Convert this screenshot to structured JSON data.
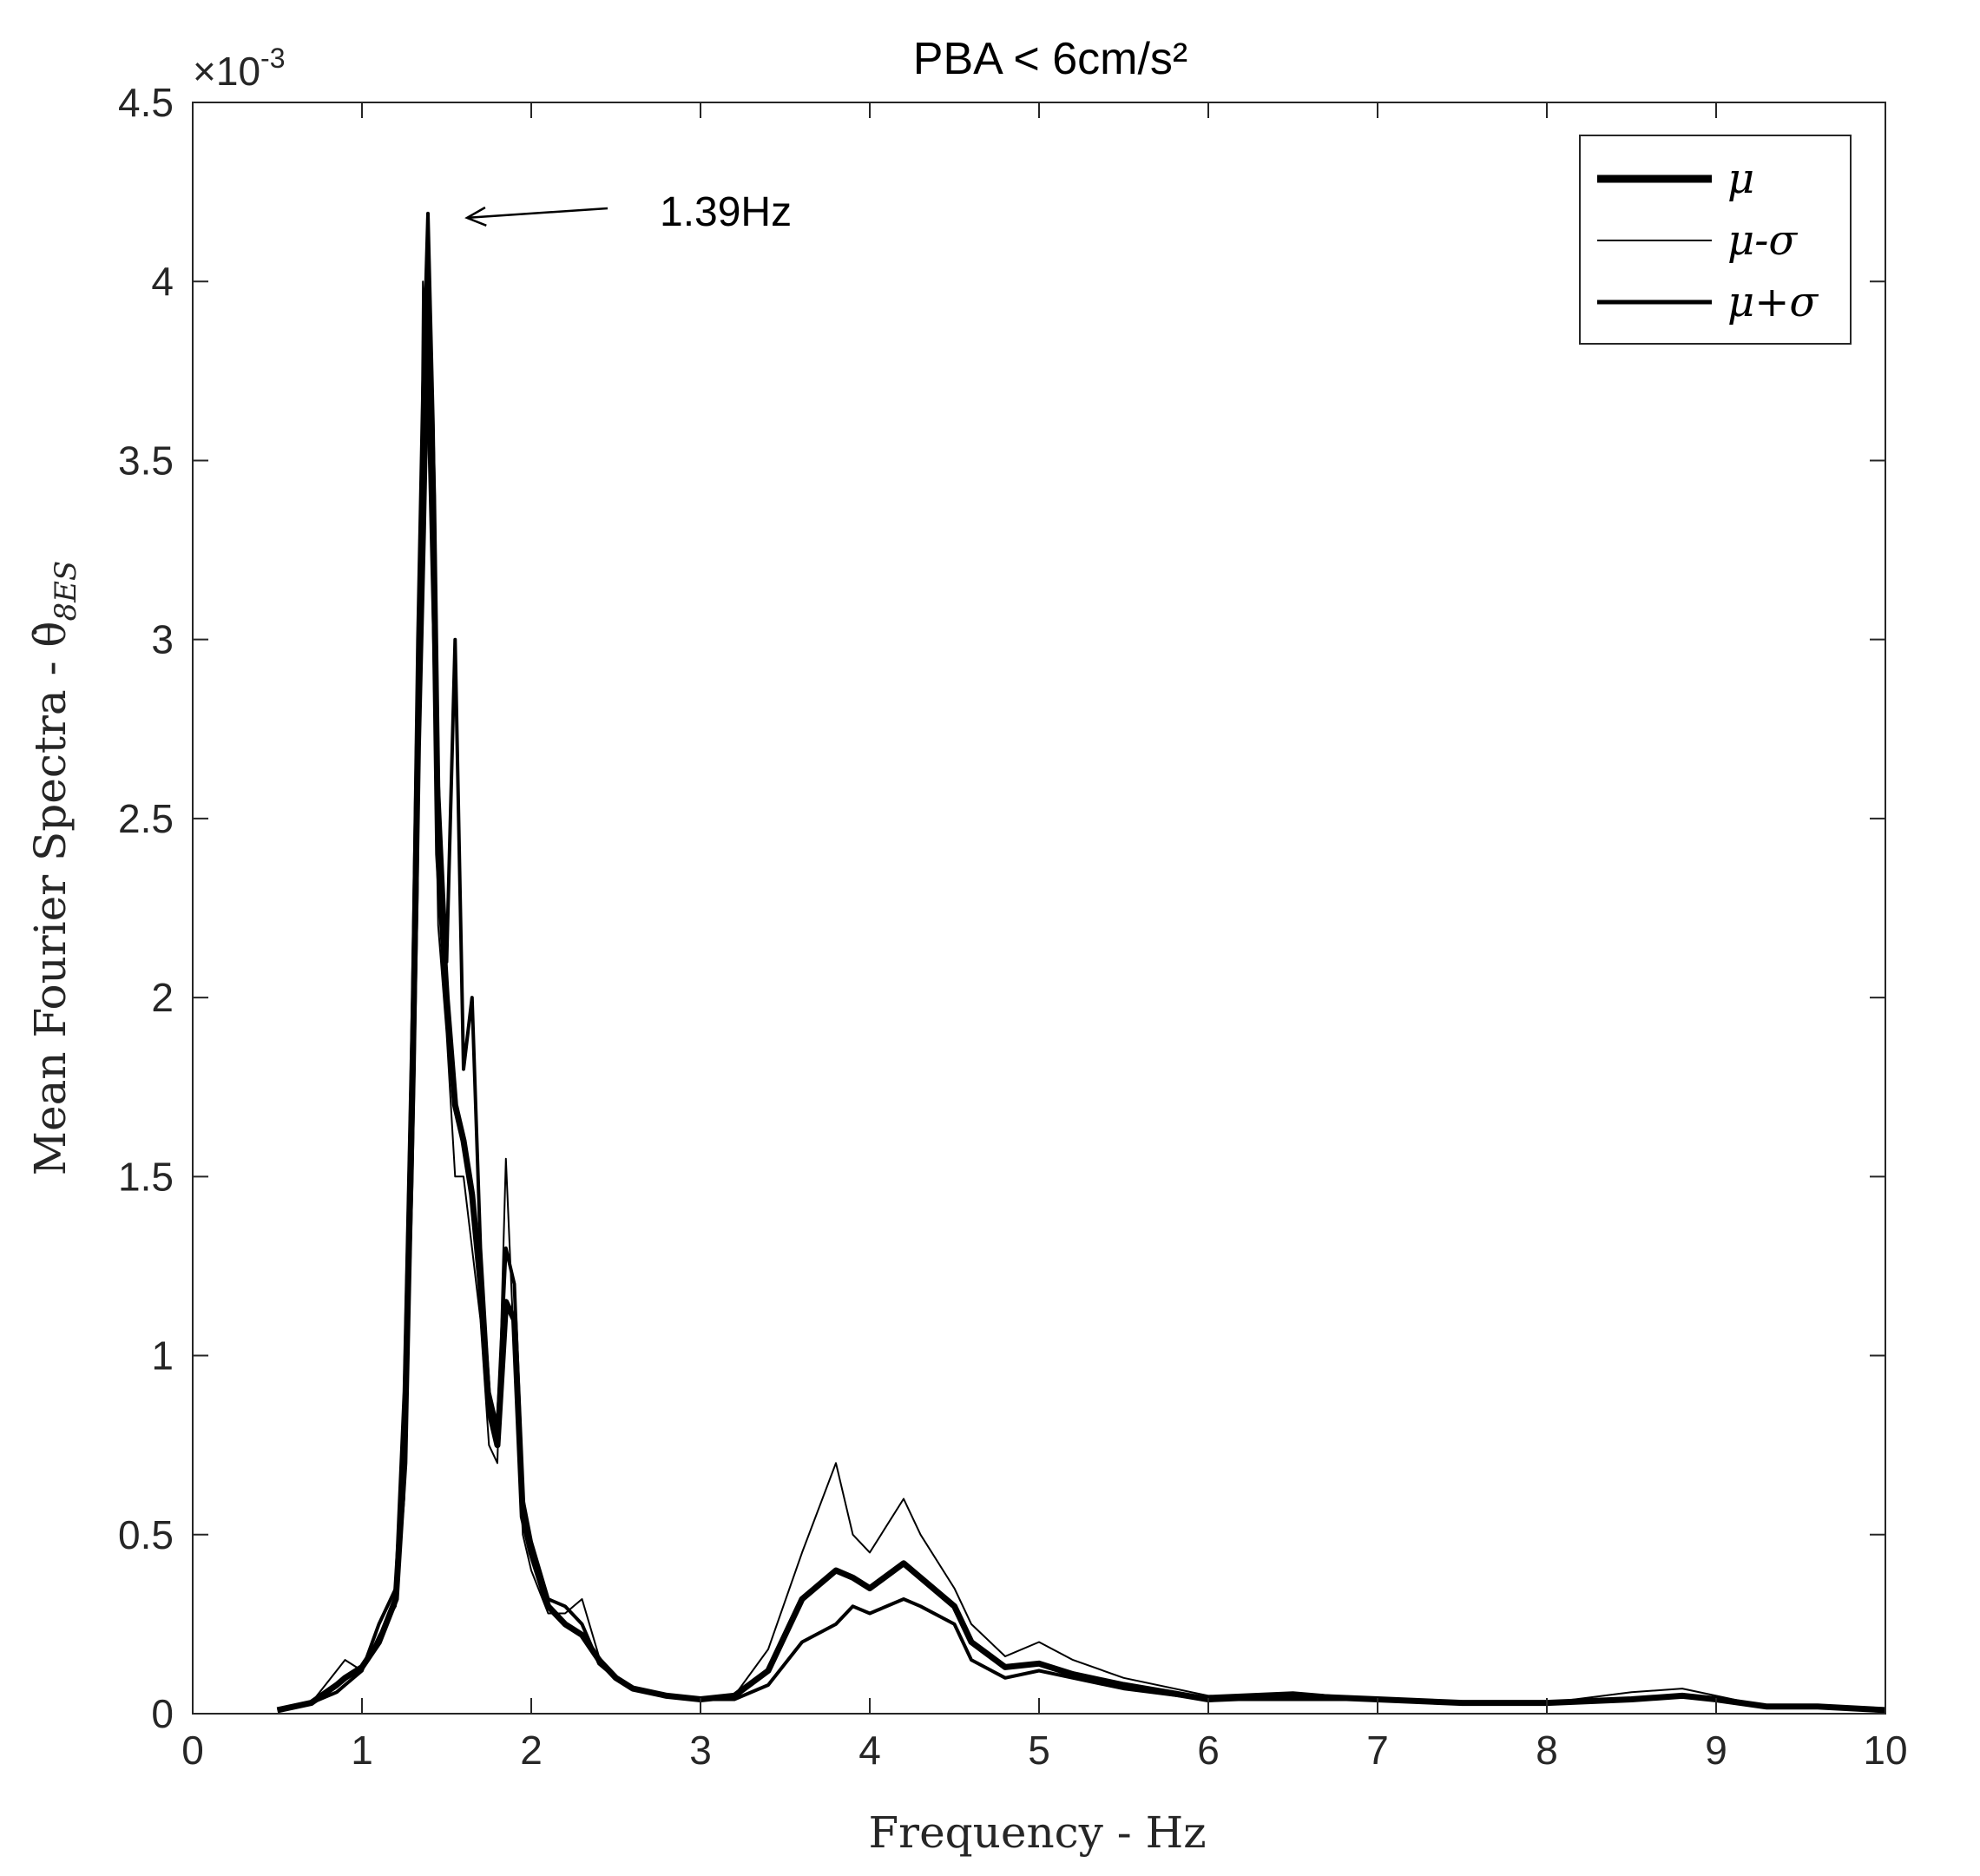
{
  "chart_data": {
    "type": "line",
    "title": "PBA < 6cm/s²",
    "xlabel": "Frequency - Hz",
    "ylabel": "Mean Fourier Spectra - θ̇",
    "ylabel_subscript": "8ES",
    "y_multiplier_label": "×10",
    "y_multiplier_exponent": "-3",
    "xlim": [
      0,
      10
    ],
    "ylim": [
      0,
      4.5
    ],
    "xticks": [
      0,
      1,
      2,
      3,
      4,
      5,
      6,
      7,
      8,
      9,
      10
    ],
    "yticks": [
      0,
      0.5,
      1,
      1.5,
      2,
      2.5,
      3,
      3.5,
      4,
      4.5
    ],
    "xtick_labels": [
      "0",
      "1",
      "2",
      "3",
      "4",
      "5",
      "6",
      "7",
      "8",
      "9",
      "10"
    ],
    "ytick_labels": [
      "0",
      "0.5",
      "1",
      "1.5",
      "2",
      "2.5",
      "3",
      "3.5",
      "4",
      "4.5"
    ],
    "grid": false,
    "legend_position": "top-right",
    "annotation": {
      "text": "1.39Hz",
      "x": 1.39,
      "y": 4.19
    },
    "series": [
      {
        "name": "μ",
        "color": "#000000",
        "weight": "thick",
        "x": [
          0.5,
          0.7,
          0.85,
          0.9,
          1.0,
          1.1,
          1.2,
          1.25,
          1.3,
          1.33,
          1.36,
          1.39,
          1.42,
          1.45,
          1.5,
          1.55,
          1.6,
          1.65,
          1.7,
          1.75,
          1.8,
          1.85,
          1.9,
          1.95,
          2.0,
          2.1,
          2.2,
          2.3,
          2.4,
          2.5,
          2.6,
          2.8,
          3.0,
          3.2,
          3.4,
          3.6,
          3.8,
          3.9,
          4.0,
          4.2,
          4.3,
          4.5,
          4.6,
          4.8,
          5.0,
          5.2,
          5.5,
          6.0,
          6.5,
          7.0,
          7.5,
          8.0,
          8.5,
          8.8,
          9.0,
          9.3,
          9.6,
          10.0
        ],
        "y": [
          0.01,
          0.03,
          0.08,
          0.1,
          0.13,
          0.2,
          0.32,
          0.7,
          1.8,
          2.7,
          3.3,
          4.0,
          3.4,
          2.4,
          2.0,
          1.7,
          1.6,
          1.45,
          1.2,
          0.85,
          0.75,
          1.15,
          1.1,
          0.55,
          0.45,
          0.3,
          0.25,
          0.22,
          0.15,
          0.1,
          0.07,
          0.05,
          0.04,
          0.05,
          0.12,
          0.32,
          0.4,
          0.38,
          0.35,
          0.42,
          0.38,
          0.3,
          0.2,
          0.13,
          0.14,
          0.11,
          0.08,
          0.04,
          0.05,
          0.04,
          0.03,
          0.03,
          0.04,
          0.05,
          0.04,
          0.02,
          0.02,
          0.01
        ]
      },
      {
        "name": "μ-σ",
        "color": "#000000",
        "weight": "thin",
        "x": [
          0.5,
          0.7,
          0.85,
          0.9,
          1.0,
          1.1,
          1.2,
          1.25,
          1.3,
          1.33,
          1.36,
          1.39,
          1.42,
          1.45,
          1.5,
          1.55,
          1.6,
          1.65,
          1.7,
          1.75,
          1.8,
          1.85,
          1.9,
          1.95,
          2.0,
          2.1,
          2.2,
          2.3,
          2.4,
          2.5,
          2.6,
          2.8,
          3.0,
          3.2,
          3.4,
          3.6,
          3.8,
          3.9,
          4.0,
          4.2,
          4.3,
          4.5,
          4.6,
          4.8,
          5.0,
          5.2,
          5.5,
          6.0,
          6.5,
          7.0,
          7.5,
          8.0,
          8.5,
          8.8,
          9.0,
          9.3,
          9.6,
          10.0
        ],
        "y": [
          0.01,
          0.03,
          0.12,
          0.15,
          0.12,
          0.22,
          0.3,
          0.6,
          1.5,
          2.3,
          4.0,
          3.6,
          3.0,
          2.2,
          1.9,
          1.5,
          1.5,
          1.3,
          1.1,
          0.75,
          0.7,
          1.55,
          1.0,
          0.5,
          0.4,
          0.28,
          0.28,
          0.32,
          0.16,
          0.1,
          0.07,
          0.05,
          0.04,
          0.05,
          0.18,
          0.45,
          0.7,
          0.5,
          0.45,
          0.6,
          0.5,
          0.35,
          0.25,
          0.16,
          0.2,
          0.15,
          0.1,
          0.05,
          0.06,
          0.04,
          0.03,
          0.03,
          0.06,
          0.07,
          0.05,
          0.02,
          0.02,
          0.01
        ]
      },
      {
        "name": "μ+σ",
        "color": "#000000",
        "weight": "medium",
        "x": [
          0.5,
          0.7,
          0.85,
          0.9,
          1.0,
          1.1,
          1.2,
          1.25,
          1.3,
          1.33,
          1.36,
          1.39,
          1.42,
          1.45,
          1.5,
          1.55,
          1.6,
          1.65,
          1.7,
          1.75,
          1.8,
          1.85,
          1.9,
          1.95,
          2.0,
          2.1,
          2.2,
          2.3,
          2.4,
          2.5,
          2.6,
          2.8,
          3.0,
          3.2,
          3.4,
          3.6,
          3.8,
          3.9,
          4.0,
          4.2,
          4.3,
          4.5,
          4.6,
          4.8,
          5.0,
          5.2,
          5.5,
          6.0,
          6.5,
          7.0,
          7.5,
          8.0,
          8.5,
          8.8,
          9.0,
          9.3,
          9.6,
          10.0
        ],
        "y": [
          0.01,
          0.03,
          0.06,
          0.08,
          0.12,
          0.25,
          0.35,
          0.9,
          2.0,
          3.0,
          3.7,
          4.19,
          3.6,
          2.6,
          2.1,
          3.0,
          1.8,
          2.0,
          1.3,
          0.9,
          0.8,
          1.3,
          1.2,
          0.6,
          0.48,
          0.32,
          0.3,
          0.25,
          0.14,
          0.1,
          0.07,
          0.05,
          0.04,
          0.04,
          0.08,
          0.2,
          0.25,
          0.3,
          0.28,
          0.32,
          0.3,
          0.25,
          0.15,
          0.1,
          0.12,
          0.1,
          0.07,
          0.04,
          0.04,
          0.04,
          0.03,
          0.03,
          0.04,
          0.05,
          0.04,
          0.02,
          0.02,
          0.01
        ]
      }
    ]
  }
}
